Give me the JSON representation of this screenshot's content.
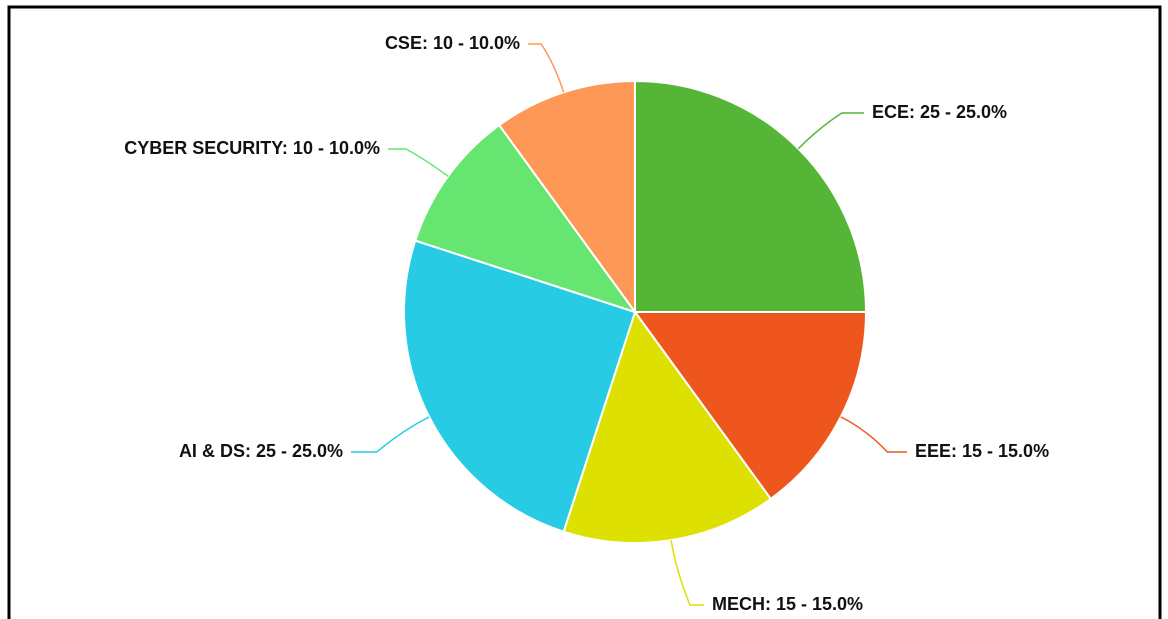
{
  "chart_data": {
    "type": "pie",
    "labels": [
      "ECE: 25 - 25.0%",
      "EEE: 15 - 15.0%",
      "MECH: 15 - 15.0%",
      "AI & DS: 25 - 25.0%",
      "CYBER SECURITY: 10 - 10.0%",
      "CSE: 10 - 10.0%"
    ],
    "values": [
      25,
      15,
      15,
      25,
      10,
      10
    ],
    "colors": [
      "#55b536",
      "#ee561e",
      "#dde000",
      "#27cbe3",
      "#66e571",
      "#fd9857"
    ]
  }
}
